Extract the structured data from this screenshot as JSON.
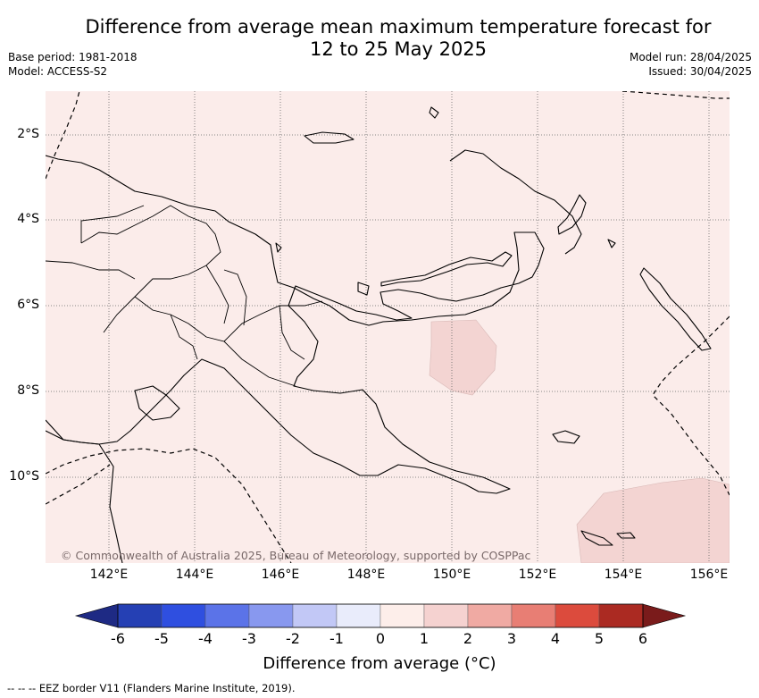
{
  "title_line1": "Difference from average mean maximum temperature forecast for",
  "title_line2": "12 to 25 May 2025",
  "base_period": "Base period: 1981-2018",
  "model": "Model: ACCESS-S2",
  "model_run": "Model run: 28/04/2025",
  "issued": "Issued: 30/04/2025",
  "copyright": "© Commonwealth of Australia 2025, Bureau of Meteorology, supported by COSPPac",
  "lat_labels": [
    "2°S",
    "4°S",
    "6°S",
    "8°S",
    "10°S"
  ],
  "lon_labels": [
    "142°E",
    "144°E",
    "146°E",
    "148°E",
    "150°E",
    "152°E",
    "154°E",
    "156°E"
  ],
  "colorbar": {
    "label": "Difference from average (°C)",
    "ticks": [
      "-6",
      "-5",
      "-4",
      "-3",
      "-2",
      "-1",
      "0",
      "1",
      "2",
      "3",
      "4",
      "5",
      "6"
    ],
    "colors": [
      "#1e2a84",
      "#2540b4",
      "#2f4fe0",
      "#5b73e8",
      "#8898ef",
      "#c2c8f6",
      "#e9ecfb",
      "#fdeeea",
      "#f5d2d0",
      "#f0aaa3",
      "#e87e74",
      "#dc4b3d",
      "#ab2a22",
      "#7a1b1b"
    ]
  },
  "map_colors": {
    "background": "#fbecea",
    "anomaly": "#f3d4d2"
  },
  "eez_note": "-- -- -- EEZ border V11 (Flanders Marine Institute, 2019)."
}
